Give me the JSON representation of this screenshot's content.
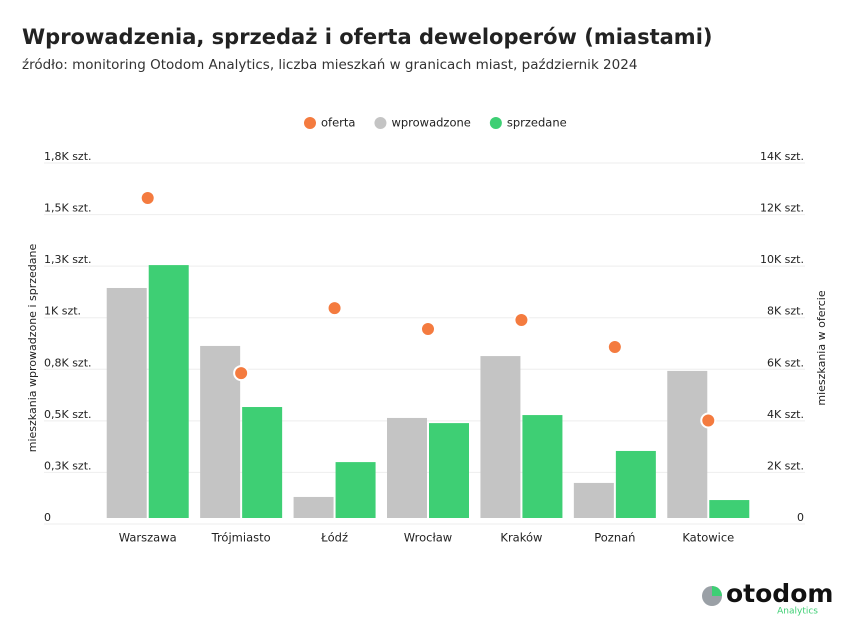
{
  "chart_data": {
    "type": "bar",
    "title": "Wprowadzenia, sprzedaż i oferta deweloperów (miastami)",
    "subtitle": "źródło: monitoring Otodom Analytics, liczba mieszkań w granicach miast, październik 2024",
    "y_label": "mieszkania wprowadzone i sprzedane",
    "y2_label": "mieszkania w ofercie",
    "categories": [
      "Warszawa",
      "Trójmiasto",
      "Łódź",
      "Wrocław",
      "Kraków",
      "Poznań",
      "Katowice"
    ],
    "series": [
      {
        "name": "oferta",
        "color": "#f47b3f",
        "type": "scatter",
        "axis": "y2",
        "values": [
          12410,
          5620,
          8140,
          7330,
          7680,
          6630,
          3780
        ]
      },
      {
        "name": "wprowadzone",
        "color": "#c4c4c4",
        "values": [
          1115,
          834,
          102,
          485,
          785,
          170,
          713
        ]
      },
      {
        "name": "sprzedane",
        "color": "#3ecf74",
        "values": [
          1226,
          538,
          271,
          460,
          499,
          325,
          87
        ]
      }
    ],
    "ylim": [
      0,
      1750
    ],
    "yticks": [
      0,
      {
        "value": 250,
        "label": "0,3K szt."
      },
      {
        "value": 500,
        "label": "0,5K szt."
      },
      {
        "value": 750,
        "label": "0,8K szt."
      },
      {
        "value": 1000,
        "label": "1K szt."
      },
      {
        "value": 1250,
        "label": "1,3K szt."
      },
      {
        "value": 1500,
        "label": "1,5K szt."
      },
      {
        "value": 1750,
        "label": "1,8K szt."
      }
    ],
    "y2lim": [
      0,
      14000
    ],
    "y2ticks": [
      0,
      {
        "value": 2000,
        "label": "2K szt."
      },
      {
        "value": 4000,
        "label": "4K szt."
      },
      {
        "value": 6000,
        "label": "6K szt."
      },
      {
        "value": 8000,
        "label": "8K szt."
      },
      {
        "value": 10000,
        "label": "10K szt."
      },
      {
        "value": 12000,
        "label": "12K szt."
      },
      {
        "value": 14000,
        "label": "14K szt."
      }
    ],
    "grid": true,
    "logo": {
      "name": "otodom",
      "sub": "Analytics"
    }
  }
}
